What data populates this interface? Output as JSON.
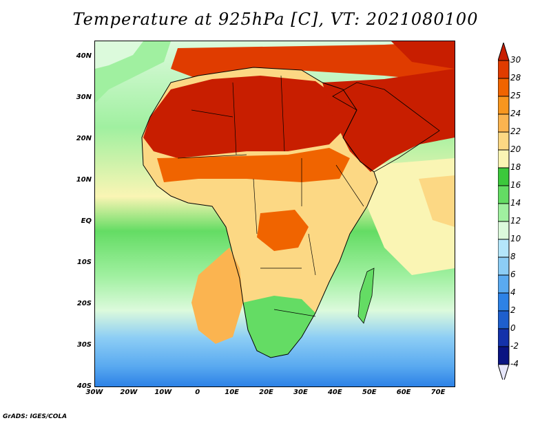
{
  "title": "Temperature at 925hPa [C], VT: 2021080100",
  "footer": "GrADS: IGES/COLA",
  "map": {
    "lon_range": [
      -30,
      75
    ],
    "lat_range": [
      -40,
      44
    ],
    "y_ticks": [
      {
        "value": 40,
        "label": "40N"
      },
      {
        "value": 30,
        "label": "30N"
      },
      {
        "value": 20,
        "label": "20N"
      },
      {
        "value": 10,
        "label": "10N"
      },
      {
        "value": 0,
        "label": "EQ"
      },
      {
        "value": -10,
        "label": "10S"
      },
      {
        "value": -20,
        "label": "20S"
      },
      {
        "value": -30,
        "label": "30S"
      },
      {
        "value": -40,
        "label": "40S"
      }
    ],
    "x_ticks": [
      {
        "value": -30,
        "label": "30W"
      },
      {
        "value": -20,
        "label": "20W"
      },
      {
        "value": -10,
        "label": "10W"
      },
      {
        "value": 0,
        "label": "0"
      },
      {
        "value": 10,
        "label": "10E"
      },
      {
        "value": 20,
        "label": "20E"
      },
      {
        "value": 30,
        "label": "30E"
      },
      {
        "value": 40,
        "label": "40E"
      },
      {
        "value": 50,
        "label": "50E"
      },
      {
        "value": 60,
        "label": "60E"
      },
      {
        "value": 70,
        "label": "70E"
      }
    ]
  },
  "legend": {
    "levels": [
      "30",
      "28",
      "25",
      "24",
      "22",
      "20",
      "18",
      "16",
      "14",
      "12",
      "10",
      "8",
      "6",
      "4",
      "2",
      "0",
      "-2",
      "-4"
    ],
    "colors": [
      "#c81e00",
      "#e03c00",
      "#f06400",
      "#f8961e",
      "#fbb450",
      "#fcd884",
      "#faf5b4",
      "#3cc83c",
      "#64dc64",
      "#a0f0a0",
      "#dcfadc",
      "#b4e6fa",
      "#8ccdf5",
      "#5aaaf0",
      "#2d82e6",
      "#1e5fcd",
      "#1432aa",
      "#0a1482",
      "#e6e6fa"
    ]
  }
}
